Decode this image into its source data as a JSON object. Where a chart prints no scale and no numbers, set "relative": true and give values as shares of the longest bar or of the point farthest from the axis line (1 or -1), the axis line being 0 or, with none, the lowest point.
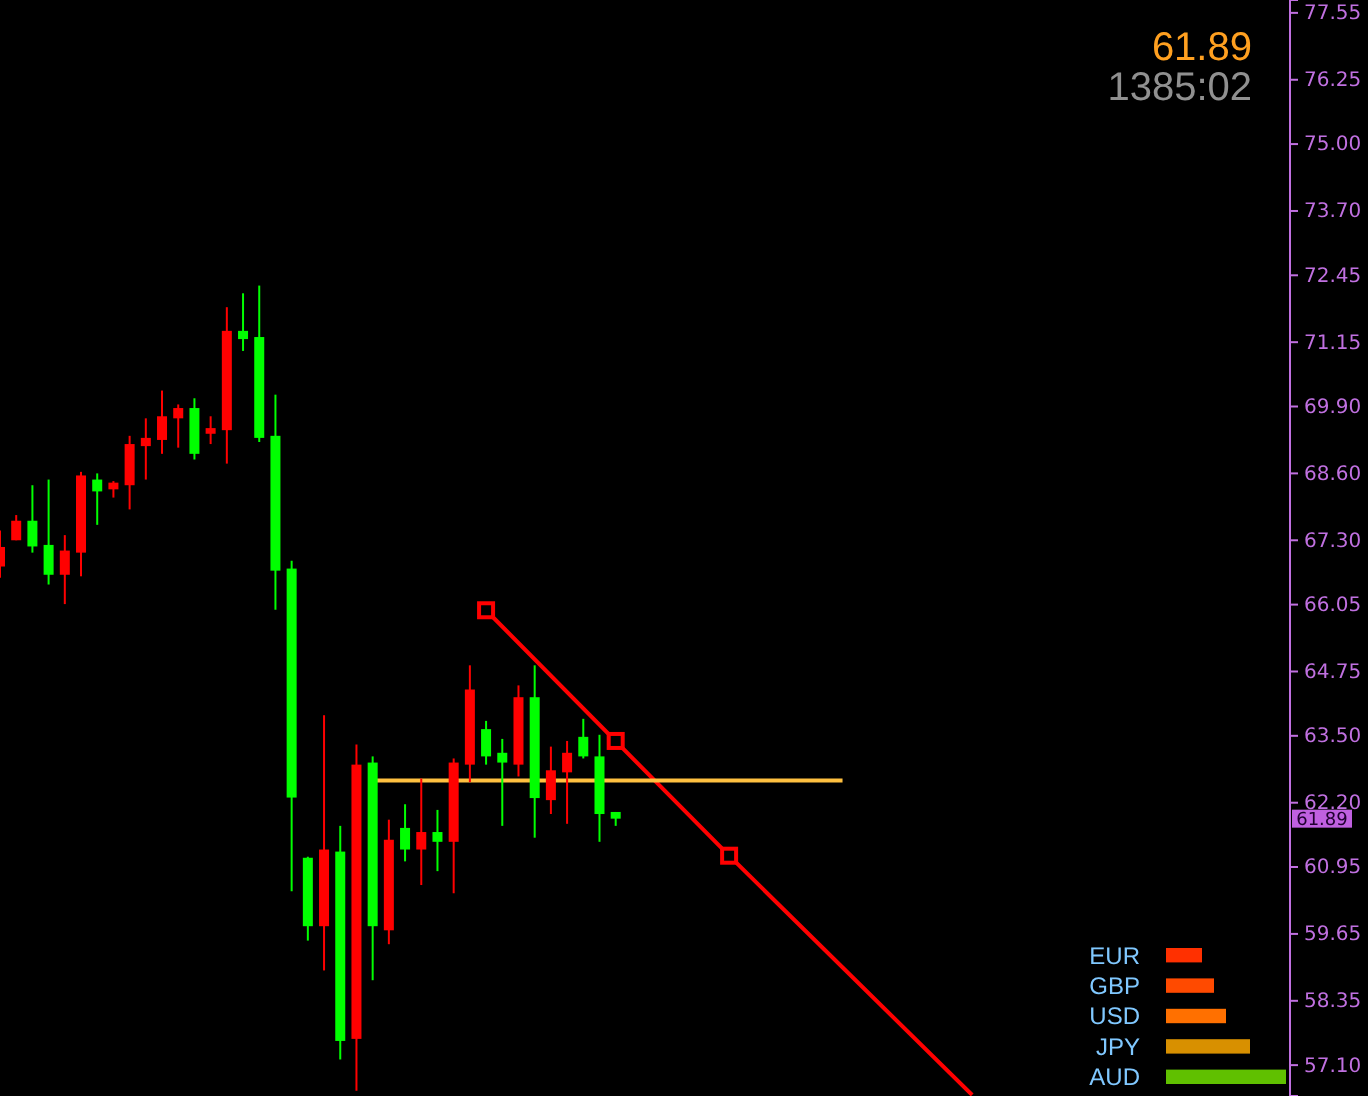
{
  "chart_data": [
    {
      "type": "candlestick",
      "categories": [
        null,
        null,
        null,
        null,
        null,
        null,
        null,
        null,
        null,
        null,
        null,
        null,
        null,
        null,
        null,
        null,
        null,
        null,
        null,
        null,
        null,
        null,
        null,
        null,
        null,
        null,
        null,
        null,
        null,
        null,
        null,
        null,
        null,
        null,
        null,
        null,
        null,
        null,
        null,
        null,
        null,
        null,
        null,
        null,
        null,
        null,
        null,
        null,
        null,
        null,
        null,
        null,
        null,
        null,
        null,
        null,
        null,
        null,
        null,
        null,
        null,
        null,
        null,
        null,
        null,
        null,
        null,
        null,
        null,
        null,
        null,
        null,
        null,
        null,
        null,
        null,
        null,
        null,
        null,
        null
      ],
      "ohlc": [
        [
          66.79,
          67.49,
          66.57,
          67.17
        ],
        [
          67.3,
          67.79,
          67.3,
          67.68
        ],
        [
          67.68,
          68.37,
          67.06,
          67.18
        ],
        [
          67.21,
          68.48,
          66.44,
          66.63
        ],
        [
          66.63,
          67.4,
          66.06,
          67.1
        ],
        [
          67.06,
          68.63,
          66.6,
          68.56
        ],
        [
          68.48,
          68.6,
          67.6,
          68.25
        ],
        [
          68.29,
          68.45,
          68.13,
          68.42
        ],
        [
          68.37,
          69.33,
          67.9,
          69.17
        ],
        [
          69.13,
          69.67,
          68.48,
          69.29
        ],
        [
          69.25,
          70.21,
          68.98,
          69.71
        ],
        [
          69.67,
          69.94,
          69.1,
          69.87
        ],
        [
          69.87,
          70.06,
          68.87,
          68.98
        ],
        [
          69.37,
          69.71,
          69.17,
          69.48
        ],
        [
          69.44,
          71.83,
          68.79,
          71.37
        ],
        [
          71.37,
          72.1,
          70.98,
          71.21
        ],
        [
          71.25,
          72.25,
          69.21,
          69.29
        ],
        [
          69.33,
          70.13,
          65.95,
          66.71
        ],
        [
          66.75,
          66.9,
          60.48,
          62.3
        ],
        [
          61.13,
          61.15,
          59.52,
          59.8
        ],
        [
          59.8,
          63.9,
          58.94,
          61.29
        ],
        [
          61.25,
          61.75,
          57.21,
          57.57
        ],
        [
          57.61,
          63.33,
          56.6,
          62.94
        ],
        [
          62.98,
          63.1,
          58.75,
          59.8
        ],
        [
          59.72,
          61.87,
          59.45,
          61.48
        ],
        [
          61.71,
          62.17,
          61.06,
          61.29
        ],
        [
          61.29,
          62.67,
          60.6,
          61.63
        ],
        [
          61.63,
          62.06,
          60.87,
          61.44
        ],
        [
          61.44,
          63.06,
          60.44,
          62.98
        ],
        [
          62.94,
          64.87,
          62.6,
          64.4
        ],
        [
          63.63,
          63.79,
          62.94,
          63.1
        ],
        [
          63.17,
          63.44,
          61.75,
          62.98
        ],
        [
          62.94,
          64.48,
          62.71,
          64.25
        ],
        [
          64.25,
          64.87,
          61.52,
          62.29
        ],
        [
          62.25,
          63.29,
          61.98,
          62.83
        ],
        [
          62.79,
          63.4,
          61.79,
          63.17
        ],
        [
          63.48,
          63.83,
          63.06,
          63.1
        ],
        [
          63.1,
          63.52,
          61.44,
          61.98
        ],
        [
          62.02,
          62.02,
          61.75,
          61.89
        ],
        null,
        null,
        null,
        null,
        null,
        null,
        null,
        null,
        null,
        null,
        null,
        null,
        null,
        null,
        null,
        null,
        null,
        null,
        null,
        null,
        null,
        null,
        null,
        null,
        null,
        null,
        null,
        null,
        null,
        null,
        null,
        null,
        null,
        null,
        null,
        null,
        null,
        null,
        null,
        null,
        null
      ],
      "colors": [
        "#ff0000",
        "#ff0000",
        "#00ff00",
        "#00ff00",
        "#ff0000",
        "#ff0000",
        "#00ff00",
        "#ff0000",
        "#ff0000",
        "#ff0000",
        "#ff0000",
        "#ff0000",
        "#00ff00",
        "#ff0000",
        "#ff0000",
        "#00ff00",
        "#00ff00",
        "#00ff00",
        "#00ff00",
        "#00ff00",
        "#ff0000",
        "#00ff00",
        "#ff0000",
        "#00ff00",
        "#ff0000",
        "#00ff00",
        "#ff0000",
        "#00ff00",
        "#ff0000",
        "#ff0000",
        "#00ff00",
        "#00ff00",
        "#ff0000",
        "#00ff00",
        "#ff0000",
        "#ff0000",
        "#00ff00",
        "#00ff00",
        "#00ff00",
        null,
        null,
        null,
        null,
        null,
        null,
        null,
        null,
        null,
        null,
        null,
        null,
        null,
        null,
        null,
        null,
        null,
        null,
        null,
        null,
        null,
        null,
        null,
        null,
        null,
        null,
        null,
        null,
        null,
        null,
        null,
        null,
        null,
        null,
        null,
        null,
        null,
        null,
        null,
        null,
        null
      ],
      "series": [
        {
          "type": "line",
          "color": "#ff0000",
          "values": [
            null,
            null,
            null,
            null,
            null,
            null,
            null,
            null,
            null,
            null,
            null,
            null,
            null,
            null,
            null,
            null,
            null,
            null,
            null,
            null,
            null,
            null,
            null,
            null,
            null,
            null,
            null,
            null,
            null,
            null,
            65.94,
            null,
            null,
            null,
            null,
            null,
            null,
            null,
            null,
            null,
            null,
            null,
            null,
            null,
            null,
            61.17,
            null,
            null,
            null,
            null,
            null,
            null,
            null,
            null,
            null,
            null,
            null,
            null,
            null,
            null,
            56.52,
            null,
            null,
            null,
            null,
            null,
            null,
            null,
            null,
            null,
            null,
            null,
            null,
            null,
            null,
            null,
            null,
            null,
            null,
            null
          ]
        },
        {
          "type": "scatter",
          "color": "#ff0000",
          "marker": "square",
          "values": [
            null,
            null,
            null,
            null,
            null,
            null,
            null,
            null,
            null,
            null,
            null,
            null,
            null,
            null,
            null,
            null,
            null,
            null,
            null,
            null,
            null,
            null,
            null,
            null,
            null,
            null,
            null,
            null,
            null,
            null,
            65.94,
            null,
            null,
            null,
            null,
            null,
            null,
            null,
            63.4,
            null,
            null,
            null,
            null,
            null,
            null,
            61.17,
            null,
            null,
            null,
            null,
            null,
            null,
            null,
            null,
            null,
            null,
            null,
            null,
            null,
            null,
            null,
            null,
            null,
            null,
            null,
            null,
            null,
            null,
            null,
            null,
            null,
            null,
            null,
            null,
            null,
            null,
            null,
            null,
            null,
            null
          ]
        },
        {
          "type": "line",
          "color": "#ffc040",
          "values": [
            null,
            null,
            null,
            null,
            null,
            null,
            null,
            null,
            null,
            null,
            null,
            null,
            null,
            null,
            null,
            null,
            null,
            null,
            null,
            null,
            null,
            null,
            null,
            62.63,
            null,
            null,
            null,
            null,
            null,
            null,
            null,
            null,
            null,
            null,
            null,
            null,
            null,
            null,
            null,
            null,
            null,
            null,
            null,
            null,
            null,
            null,
            null,
            null,
            null,
            null,
            null,
            null,
            62.63,
            null,
            null,
            null,
            null,
            null,
            null,
            null,
            null,
            null,
            null,
            null,
            null,
            null,
            null,
            null,
            null,
            null,
            null,
            null,
            null,
            null,
            null,
            null,
            null,
            null,
            null,
            null
          ]
        }
      ],
      "ylim": [
        56.5,
        77.8
      ],
      "yticks": [
        77.55,
        76.25,
        {
          "value": 75,
          "label": "75.00"
        },
        {
          "value": 73.7,
          "label": "73.70"
        },
        72.45,
        71.15,
        {
          "value": 69.9,
          "label": "69.90"
        },
        {
          "value": 68.6,
          "label": "68.60"
        },
        {
          "value": 67.3,
          "label": "67.30"
        },
        66.05,
        64.75,
        {
          "value": 63.5,
          "label": "63.50"
        },
        {
          "value": 62.2,
          "label": "62.20"
        },
        60.95,
        59.65,
        58.35,
        {
          "value": 57.1,
          "label": "57.10"
        }
      ],
      "tick_labels": "y",
      "annotations": [
        "61.89",
        "1385:02",
        {
          "text": "61.89",
          "y": 61.89
        }
      ]
    },
    {
      "type": "bar",
      "orientation": "horizontal",
      "relative": true,
      "categories": [
        "EUR",
        "GBP",
        "USD",
        "JPY",
        "AUD"
      ],
      "values": [
        0.3,
        0.4,
        0.5,
        0.7,
        1.0
      ],
      "colors": [
        "#ff3000",
        "#ff4a00",
        "#ff7000",
        "#d89000",
        "#60c000"
      ]
    }
  ]
}
